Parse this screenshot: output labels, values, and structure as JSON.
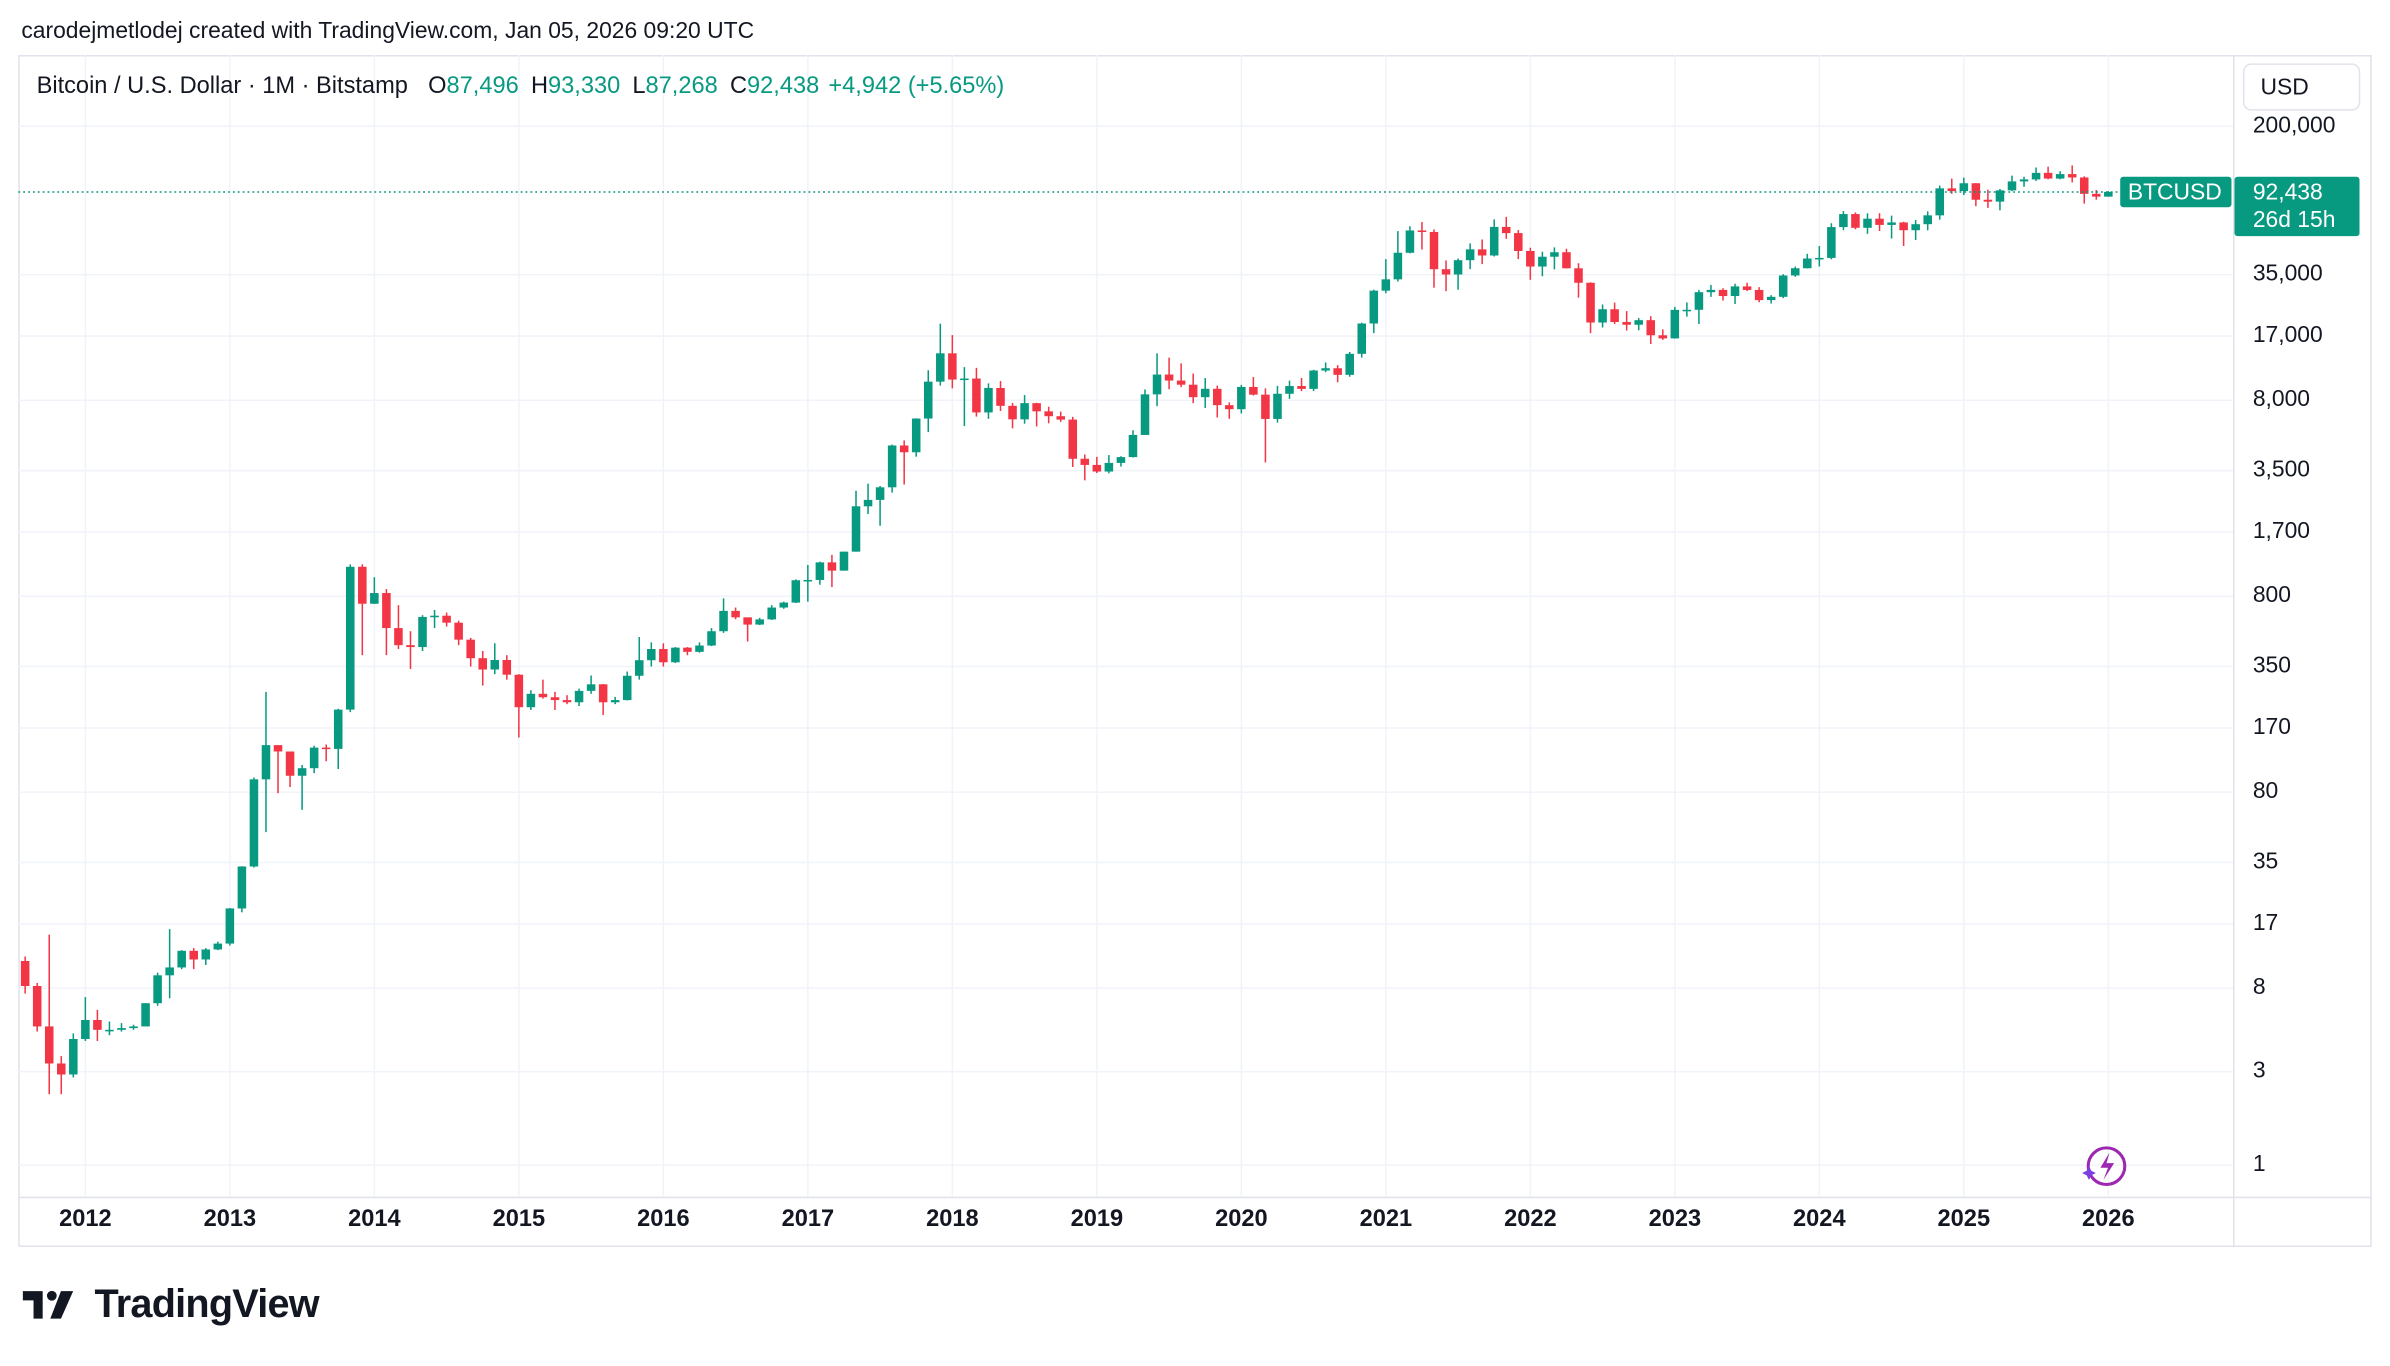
{
  "attribution": "carodejmetlodej created with TradingView.com, Jan 05, 2026 09:20 UTC",
  "brand": "TradingView",
  "currency": "USD",
  "chart_data": {
    "type": "candlestick",
    "title": "Bitcoin / U.S. Dollar · 1M · Bitstamp",
    "ohlc_legend": [
      {
        "key": "O",
        "label": "87,496"
      },
      {
        "key": "H",
        "label": "93,330"
      },
      {
        "key": "L",
        "label": "87,268"
      },
      {
        "key": "C",
        "label": "92,438"
      }
    ],
    "change": "+4,942 (+5.65%)",
    "price_tag": {
      "symbol": "BTCUSD",
      "price": {
        "value": 92438,
        "label": "92,438"
      },
      "countdown": "26d 15h"
    },
    "up_color": "#089981",
    "down_color": "#f23645",
    "log_scale": true,
    "grid": true,
    "ylim": [
      0.69,
      462000
    ],
    "yticks": [
      1,
      3,
      8,
      17,
      35,
      80,
      170,
      350,
      800,
      {
        "value": 1700,
        "label": "1,700"
      },
      {
        "value": 3500,
        "label": "3,500"
      },
      {
        "value": 8000,
        "label": "8,000"
      },
      {
        "value": 17000,
        "label": "17,000"
      },
      {
        "value": 35000,
        "label": "35,000"
      },
      {
        "value": 200000,
        "label": "200,000"
      }
    ],
    "categories": [
      null,
      null,
      null,
      null,
      null,
      "2012",
      null,
      null,
      null,
      null,
      null,
      null,
      null,
      null,
      null,
      null,
      null,
      "2013",
      null,
      null,
      null,
      null,
      null,
      null,
      null,
      null,
      null,
      null,
      null,
      "2014",
      null,
      null,
      null,
      null,
      null,
      null,
      null,
      null,
      null,
      null,
      null,
      "2015",
      null,
      null,
      null,
      null,
      null,
      null,
      null,
      null,
      null,
      null,
      null,
      "2016",
      null,
      null,
      null,
      null,
      null,
      null,
      null,
      null,
      null,
      null,
      null,
      "2017",
      null,
      null,
      null,
      null,
      null,
      null,
      null,
      null,
      null,
      null,
      null,
      "2018",
      null,
      null,
      null,
      null,
      null,
      null,
      null,
      null,
      null,
      null,
      null,
      "2019",
      null,
      null,
      null,
      null,
      null,
      null,
      null,
      null,
      null,
      null,
      null,
      "2020",
      null,
      null,
      null,
      null,
      null,
      null,
      null,
      null,
      null,
      null,
      null,
      "2021",
      null,
      null,
      null,
      null,
      null,
      null,
      null,
      null,
      null,
      null,
      null,
      "2022",
      null,
      null,
      null,
      null,
      null,
      null,
      null,
      null,
      null,
      null,
      null,
      "2023",
      null,
      null,
      null,
      null,
      null,
      null,
      null,
      null,
      null,
      null,
      null,
      "2024",
      null,
      null,
      null,
      null,
      null,
      null,
      null,
      null,
      null,
      null,
      null,
      "2025",
      null,
      null,
      null,
      null,
      null,
      null,
      null,
      null,
      null,
      null,
      null,
      "2026"
    ],
    "open": [
      11,
      8.2,
      5.1,
      3.3,
      2.9,
      4.4,
      5.5,
      4.9,
      4.9,
      5.0,
      5.1,
      6.7,
      9.3,
      10.2,
      12.4,
      11.2,
      12.6,
      13.5,
      20.4,
      33.4,
      93,
      139,
      129,
      97,
      106,
      135,
      133,
      211,
      1130,
      732,
      830,
      550,
      450,
      440,
      627,
      636,
      586,
      480,
      386,
      338,
      378,
      318,
      217,
      254,
      244,
      236,
      230,
      263,
      284,
      230,
      236,
      314,
      377,
      430,
      368,
      437,
      416,
      448,
      530,
      673,
      624,
      573,
      609,
      700,
      742,
      965,
      968,
      1190,
      1080,
      1350,
      2300,
      2480,
      2875,
      4700,
      4340,
      6450,
      9950,
      13880,
      10200,
      10320,
      6930,
      9240,
      7490,
      6390,
      7730,
      7020,
      6630,
      6370,
      4020,
      3740,
      3460,
      3830,
      4100,
      5320,
      8570,
      10820,
      10080,
      9600,
      8290,
      9150,
      7550,
      7200,
      9350,
      8540,
      6420,
      8630,
      9450,
      9140,
      11340,
      11650,
      10780,
      13800,
      19700,
      28990,
      33110,
      45240,
      58800,
      57750,
      37300,
      35040,
      41460,
      47100,
      43820,
      61300,
      57000,
      46200,
      38480,
      43190,
      45530,
      37700,
      31800,
      19930,
      23300,
      20050,
      19420,
      20490,
      17160,
      16540,
      23130,
      23150,
      28470,
      29250,
      27210,
      30470,
      29230,
      25940,
      26960,
      34640,
      37720,
      42280,
      42580,
      61180,
      71300,
      60660,
      67520,
      62760,
      64600,
      58970,
      63300,
      70220,
      96400,
      93400,
      102400,
      84350,
      82500,
      94200,
      104600,
      107100,
      115700,
      108200,
      114000,
      109600,
      90400,
      87496
    ],
    "high": [
      11.6,
      8.5,
      15,
      3.6,
      4.7,
      7.2,
      6.2,
      5.4,
      5.3,
      5.2,
      6.7,
      9.6,
      16,
      12.5,
      12.8,
      12.8,
      13.8,
      20.5,
      33.5,
      95,
      260,
      139,
      129,
      110,
      138,
      140,
      213,
      1163,
      1163,
      1000,
      870,
      720,
      530,
      640,
      680,
      660,
      600,
      490,
      420,
      460,
      400,
      320,
      265,
      300,
      260,
      250,
      270,
      315,
      285,
      245,
      330,
      495,
      465,
      460,
      440,
      440,
      465,
      550,
      780,
      700,
      620,
      620,
      720,
      750,
      975,
      1155,
      1200,
      1300,
      1350,
      2760,
      3000,
      2920,
      4750,
      4990,
      6470,
      11380,
      19666,
      17200,
      11800,
      11700,
      9750,
      10020,
      7750,
      8500,
      7760,
      7410,
      7000,
      6580,
      4230,
      4110,
      4200,
      4140,
      5620,
      9080,
      13880,
      13200,
      12330,
      10940,
      10380,
      9500,
      7800,
      9580,
      10500,
      9190,
      9470,
      10070,
      10380,
      11440,
      12470,
      12080,
      14100,
      19900,
      29300,
      41950,
      58350,
      61780,
      64900,
      59500,
      41330,
      42300,
      50500,
      52900,
      66930,
      69000,
      59100,
      47990,
      45800,
      48190,
      47450,
      40000,
      31980,
      24650,
      25200,
      22800,
      21000,
      21470,
      18390,
      23950,
      25250,
      29200,
      31000,
      29820,
      31430,
      31800,
      30200,
      27490,
      35200,
      38450,
      44700,
      48970,
      64000,
      73800,
      72700,
      71950,
      72000,
      70000,
      65100,
      66500,
      73600,
      99600,
      108200,
      109400,
      102500,
      95000,
      95700,
      112000,
      110500,
      123200,
      124400,
      117900,
      126200,
      111000,
      94600,
      93330
    ],
    "low": [
      7.5,
      4.8,
      2.3,
      2.3,
      2.8,
      4.3,
      4.3,
      4.6,
      4.8,
      4.9,
      5.1,
      6.5,
      7.1,
      10,
      10,
      10.5,
      12.5,
      13.2,
      19.5,
      33,
      50,
      79,
      85,
      65,
      100,
      115,
      105,
      205,
      400,
      730,
      400,
      430,
      340,
      420,
      550,
      560,
      450,
      350,
      280,
      320,
      300,
      152,
      210,
      240,
      210,
      225,
      220,
      254,
      198,
      225,
      235,
      300,
      350,
      350,
      365,
      400,
      412,
      445,
      520,
      610,
      470,
      570,
      605,
      690,
      738,
      750,
      915,
      890,
      1080,
      1350,
      2100,
      1830,
      2700,
      2970,
      4120,
      5500,
      9500,
      9200,
      5900,
      6600,
      6430,
      7050,
      5750,
      6070,
      5880,
      6100,
      6200,
      3650,
      3120,
      3400,
      3390,
      3670,
      4080,
      5320,
      7460,
      9100,
      9330,
      7730,
      7300,
      6530,
      6430,
      6850,
      8450,
      3850,
      6150,
      8130,
      8900,
      8900,
      11120,
      9880,
      10540,
      13200,
      17600,
      28130,
      32300,
      44950,
      47000,
      30000,
      28800,
      29300,
      37330,
      39600,
      43300,
      53300,
      42000,
      32930,
      34320,
      37200,
      37600,
      26700,
      17600,
      18800,
      19600,
      18150,
      18200,
      15480,
      16260,
      16500,
      21350,
      19570,
      26940,
      25820,
      24780,
      28860,
      25300,
      24900,
      26550,
      34100,
      37600,
      38500,
      41880,
      59000,
      59600,
      56550,
      58400,
      53500,
      49000,
      52600,
      58900,
      66800,
      90500,
      89200,
      78200,
      76600,
      74500,
      93300,
      98200,
      105200,
      107300,
      107300,
      103500,
      80600,
      84400,
      87268
    ],
    "close": [
      8.2,
      5.1,
      3.3,
      2.9,
      4.4,
      5.5,
      4.9,
      4.9,
      5.0,
      5.1,
      6.7,
      9.3,
      10.2,
      12.4,
      11.2,
      12.6,
      13.5,
      20.4,
      33.4,
      93,
      139,
      129,
      97,
      106,
      135,
      133,
      211,
      1130,
      732,
      830,
      550,
      450,
      440,
      627,
      636,
      586,
      480,
      386,
      338,
      378,
      318,
      217,
      254,
      244,
      236,
      230,
      263,
      284,
      230,
      236,
      314,
      377,
      430,
      368,
      437,
      416,
      448,
      530,
      673,
      624,
      573,
      609,
      700,
      742,
      965,
      968,
      1190,
      1080,
      1350,
      2300,
      2480,
      2875,
      4700,
      4340,
      6450,
      9950,
      13880,
      10200,
      10320,
      6930,
      9240,
      7490,
      6390,
      7730,
      7020,
      6630,
      6370,
      4020,
      3740,
      3460,
      3830,
      4100,
      5320,
      8570,
      10820,
      10080,
      9600,
      8290,
      9150,
      7550,
      7200,
      9350,
      8540,
      6420,
      8630,
      9450,
      9140,
      11340,
      11650,
      10780,
      13800,
      19700,
      28990,
      33110,
      45240,
      58800,
      57750,
      37300,
      35040,
      41460,
      47100,
      43820,
      61300,
      57000,
      46200,
      38480,
      43190,
      45530,
      37700,
      31800,
      19930,
      23300,
      20050,
      19420,
      20490,
      17160,
      16540,
      23130,
      23150,
      28470,
      29250,
      27210,
      30470,
      29230,
      25940,
      26960,
      34640,
      37720,
      42280,
      42580,
      61180,
      71300,
      60660,
      67520,
      62760,
      64600,
      58970,
      63300,
      70220,
      96400,
      93400,
      102400,
      84350,
      82500,
      94200,
      104600,
      107100,
      115700,
      108200,
      114000,
      109600,
      90400,
      87496,
      92438
    ]
  }
}
